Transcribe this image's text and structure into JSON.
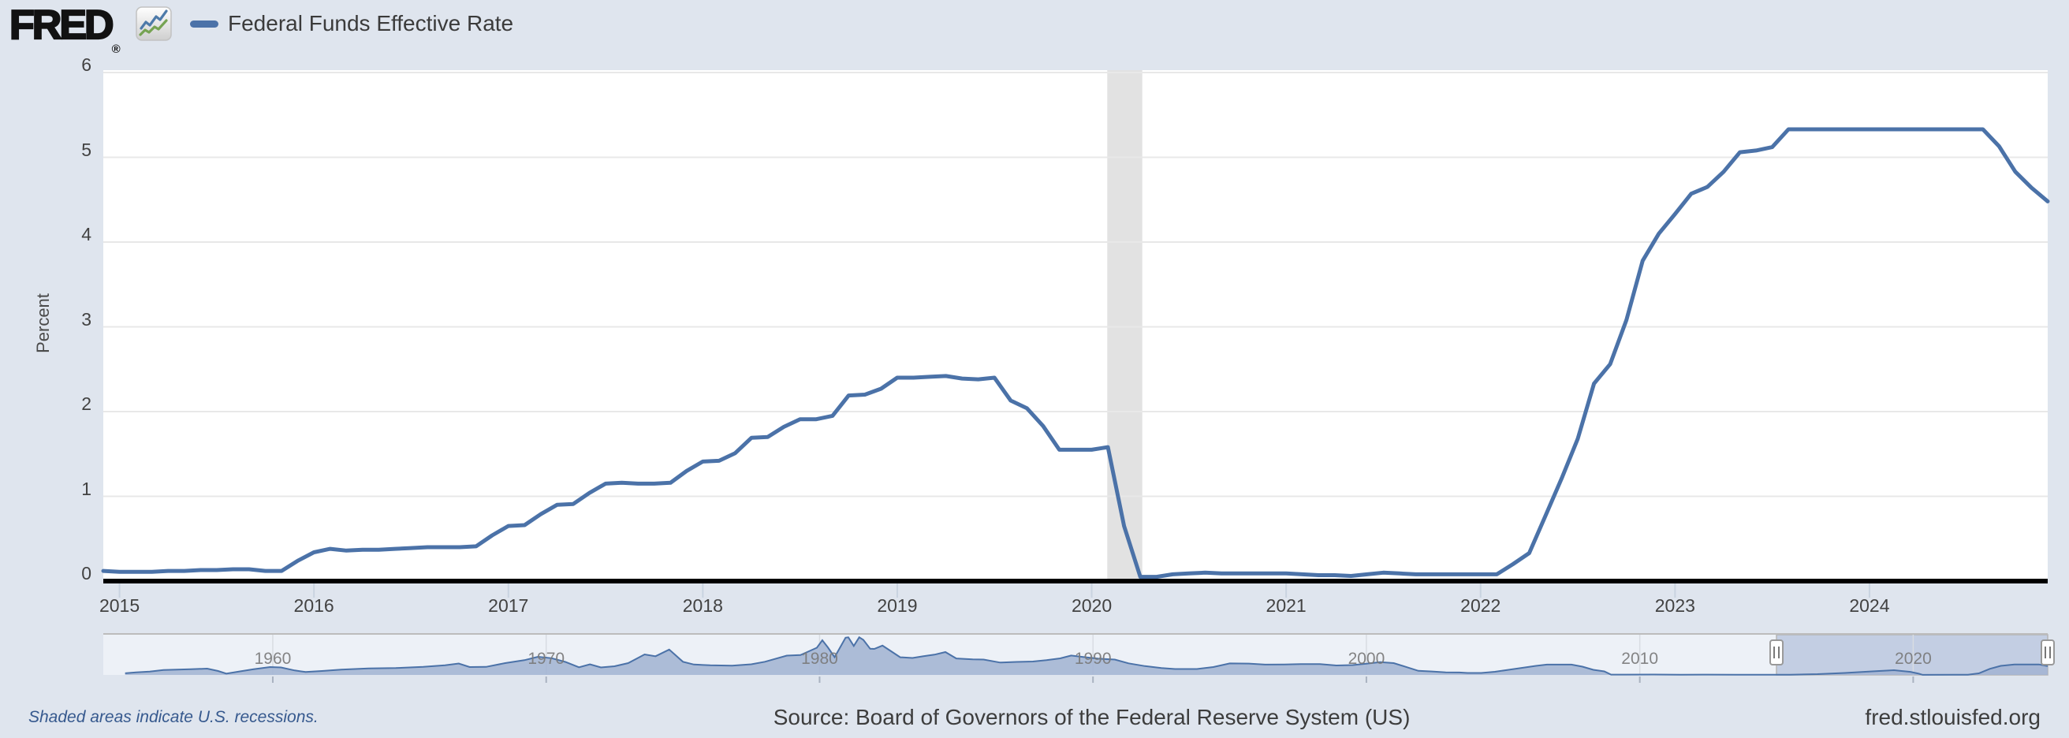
{
  "header": {
    "logo_text": "FRED",
    "logo_registered": "®",
    "legend": {
      "series_label": "Federal Funds Effective Rate"
    }
  },
  "y_axis": {
    "title": "Percent",
    "ticks": [
      0,
      1,
      2,
      3,
      4,
      5,
      6
    ],
    "min": 0,
    "max": 6
  },
  "x_axis": {
    "tick_years": [
      2015,
      2016,
      2017,
      2018,
      2019,
      2020,
      2021,
      2022,
      2023,
      2024
    ]
  },
  "footer": {
    "recessions_note": "Shaded areas indicate U.S. recessions.",
    "source": "Source: Board of Governors of the Federal Reserve System (US)",
    "site": "fred.stlouisfed.org"
  },
  "colors": {
    "page_bg": "#dfe5ee",
    "plot_bg": "#ffffff",
    "gridline": "#e8e8e8",
    "axis_line": "#000000",
    "series_line": "#4b72a8",
    "recession_band": "#e2e2e2",
    "tick_mark": "#c9d3e0",
    "minimap_bg": "#edf1f7",
    "minimap_selection": "#c3cee3",
    "minimap_border": "#bcbcbc",
    "minimap_area_fill": "#a3b4d3",
    "handle_fill": "#ffffff",
    "handle_border": "#999999",
    "handle_grip": "#777777"
  },
  "chart_data": {
    "type": "line",
    "title": "Federal Funds Effective Rate",
    "ylabel": "Percent",
    "ylim": [
      0,
      6
    ],
    "grid": true,
    "x_start": {
      "year": 2014,
      "month": 12
    },
    "x_end": {
      "year": 2024,
      "month": 12
    },
    "frequency": "monthly",
    "monthly_values": [
      0.12,
      0.11,
      0.11,
      0.11,
      0.12,
      0.12,
      0.13,
      0.13,
      0.14,
      0.14,
      0.12,
      0.12,
      0.24,
      0.34,
      0.38,
      0.36,
      0.37,
      0.37,
      0.38,
      0.39,
      0.4,
      0.4,
      0.4,
      0.41,
      0.54,
      0.65,
      0.66,
      0.79,
      0.9,
      0.91,
      1.04,
      1.15,
      1.16,
      1.15,
      1.15,
      1.16,
      1.3,
      1.41,
      1.42,
      1.51,
      1.69,
      1.7,
      1.82,
      1.91,
      1.91,
      1.95,
      2.19,
      2.2,
      2.27,
      2.4,
      2.4,
      2.41,
      2.42,
      2.39,
      2.38,
      2.4,
      2.13,
      2.04,
      1.83,
      1.55,
      1.55,
      1.55,
      1.58,
      0.65,
      0.05,
      0.05,
      0.08,
      0.09,
      0.1,
      0.09,
      0.09,
      0.09,
      0.09,
      0.09,
      0.08,
      0.07,
      0.07,
      0.06,
      0.08,
      0.1,
      0.09,
      0.08,
      0.08,
      0.08,
      0.08,
      0.08,
      0.08,
      0.2,
      0.33,
      0.77,
      1.21,
      1.68,
      2.33,
      2.56,
      3.08,
      3.78,
      4.1,
      4.33,
      4.57,
      4.65,
      4.83,
      5.06,
      5.08,
      5.12,
      5.33,
      5.33,
      5.33,
      5.33,
      5.33,
      5.33,
      5.33,
      5.33,
      5.33,
      5.33,
      5.33,
      5.33,
      5.33,
      5.13,
      4.83,
      4.64,
      4.48
    ],
    "recessions": [
      {
        "start": 2020.08,
        "end": 2020.26
      }
    ],
    "minimap": {
      "type": "area",
      "x_range": [
        1954,
        2025
      ],
      "decade_years": [
        1960,
        1970,
        1980,
        1990,
        2000,
        2010,
        2020
      ],
      "decade_labels": [
        "1960",
        "1970",
        "1980",
        "1990",
        "2000",
        "2010",
        "2020"
      ],
      "selection": {
        "start_year": 2015,
        "end_year": 2024.92
      },
      "series": [
        [
          1954.6,
          0.85
        ],
        [
          1955.0,
          1.3
        ],
        [
          1955.5,
          1.7
        ],
        [
          1956.0,
          2.5
        ],
        [
          1956.5,
          2.7
        ],
        [
          1957.0,
          2.9
        ],
        [
          1957.6,
          3.2
        ],
        [
          1958.0,
          2.0
        ],
        [
          1958.3,
          0.7
        ],
        [
          1958.8,
          1.8
        ],
        [
          1959.3,
          2.9
        ],
        [
          1959.9,
          4.0
        ],
        [
          1960.3,
          3.8
        ],
        [
          1960.8,
          2.3
        ],
        [
          1961.2,
          1.5
        ],
        [
          1961.8,
          2.0
        ],
        [
          1962.5,
          2.7
        ],
        [
          1963.5,
          3.3
        ],
        [
          1964.5,
          3.5
        ],
        [
          1965.5,
          4.1
        ],
        [
          1966.3,
          4.9
        ],
        [
          1966.8,
          5.8
        ],
        [
          1967.2,
          4.0
        ],
        [
          1967.8,
          4.1
        ],
        [
          1968.5,
          6.0
        ],
        [
          1969.2,
          7.5
        ],
        [
          1969.7,
          9.2
        ],
        [
          1970.2,
          8.5
        ],
        [
          1970.7,
          6.6
        ],
        [
          1971.2,
          3.9
        ],
        [
          1971.6,
          5.4
        ],
        [
          1972.0,
          3.8
        ],
        [
          1972.5,
          4.4
        ],
        [
          1973.0,
          6.0
        ],
        [
          1973.6,
          10.4
        ],
        [
          1974.0,
          9.5
        ],
        [
          1974.5,
          12.9
        ],
        [
          1975.0,
          6.7
        ],
        [
          1975.4,
          5.3
        ],
        [
          1976.0,
          4.9
        ],
        [
          1976.8,
          4.7
        ],
        [
          1977.5,
          5.4
        ],
        [
          1978.0,
          6.7
        ],
        [
          1978.8,
          9.8
        ],
        [
          1979.3,
          10.1
        ],
        [
          1979.9,
          13.8
        ],
        [
          1980.1,
          17.6
        ],
        [
          1980.3,
          14.0
        ],
        [
          1980.55,
          9.0
        ],
        [
          1980.95,
          18.9
        ],
        [
          1981.05,
          19.1
        ],
        [
          1981.25,
          14.7
        ],
        [
          1981.45,
          19.1
        ],
        [
          1981.6,
          17.8
        ],
        [
          1981.85,
          13.3
        ],
        [
          1982.0,
          13.2
        ],
        [
          1982.3,
          14.9
        ],
        [
          1982.55,
          12.6
        ],
        [
          1982.95,
          8.95
        ],
        [
          1983.4,
          8.6
        ],
        [
          1983.8,
          9.5
        ],
        [
          1984.2,
          10.3
        ],
        [
          1984.6,
          11.6
        ],
        [
          1985.0,
          8.35
        ],
        [
          1985.6,
          7.9
        ],
        [
          1986.0,
          7.8
        ],
        [
          1986.6,
          6.3
        ],
        [
          1987.2,
          6.6
        ],
        [
          1987.8,
          6.8
        ],
        [
          1988.3,
          7.5
        ],
        [
          1988.8,
          8.4
        ],
        [
          1989.2,
          9.85
        ],
        [
          1989.7,
          9.0
        ],
        [
          1990.2,
          8.25
        ],
        [
          1990.8,
          7.8
        ],
        [
          1991.3,
          5.9
        ],
        [
          1991.9,
          4.5
        ],
        [
          1992.5,
          3.5
        ],
        [
          1993.0,
          3.0
        ],
        [
          1993.8,
          3.0
        ],
        [
          1994.4,
          4.0
        ],
        [
          1995.0,
          5.85
        ],
        [
          1995.7,
          5.75
        ],
        [
          1996.3,
          5.25
        ],
        [
          1997.0,
          5.3
        ],
        [
          1997.6,
          5.5
        ],
        [
          1998.3,
          5.5
        ],
        [
          1998.9,
          4.8
        ],
        [
          1999.5,
          5.0
        ],
        [
          2000.0,
          5.7
        ],
        [
          2000.5,
          6.5
        ],
        [
          2001.0,
          5.98
        ],
        [
          2001.4,
          4.3
        ],
        [
          2001.9,
          2.1
        ],
        [
          2002.4,
          1.75
        ],
        [
          2002.9,
          1.3
        ],
        [
          2003.4,
          1.25
        ],
        [
          2003.7,
          1.0
        ],
        [
          2004.2,
          1.0
        ],
        [
          2004.7,
          1.6
        ],
        [
          2005.2,
          2.6
        ],
        [
          2005.7,
          3.6
        ],
        [
          2006.2,
          4.6
        ],
        [
          2006.6,
          5.25
        ],
        [
          2007.5,
          5.25
        ],
        [
          2007.9,
          4.2
        ],
        [
          2008.3,
          2.6
        ],
        [
          2008.7,
          1.8
        ],
        [
          2008.95,
          0.16
        ],
        [
          2009.5,
          0.16
        ],
        [
          2010.5,
          0.18
        ],
        [
          2011.5,
          0.1
        ],
        [
          2012.5,
          0.14
        ],
        [
          2013.5,
          0.11
        ],
        [
          2014.5,
          0.1
        ],
        [
          2015.5,
          0.13
        ],
        [
          2016.5,
          0.4
        ],
        [
          2017.5,
          1.0
        ],
        [
          2018.5,
          1.8
        ],
        [
          2019.3,
          2.4
        ],
        [
          2019.9,
          1.55
        ],
        [
          2020.2,
          0.65
        ],
        [
          2020.35,
          0.05
        ],
        [
          2021.5,
          0.08
        ],
        [
          2022.0,
          0.08
        ],
        [
          2022.4,
          0.8
        ],
        [
          2022.8,
          3.1
        ],
        [
          2023.2,
          4.6
        ],
        [
          2023.7,
          5.33
        ],
        [
          2024.6,
          5.33
        ],
        [
          2024.92,
          4.48
        ]
      ]
    }
  }
}
